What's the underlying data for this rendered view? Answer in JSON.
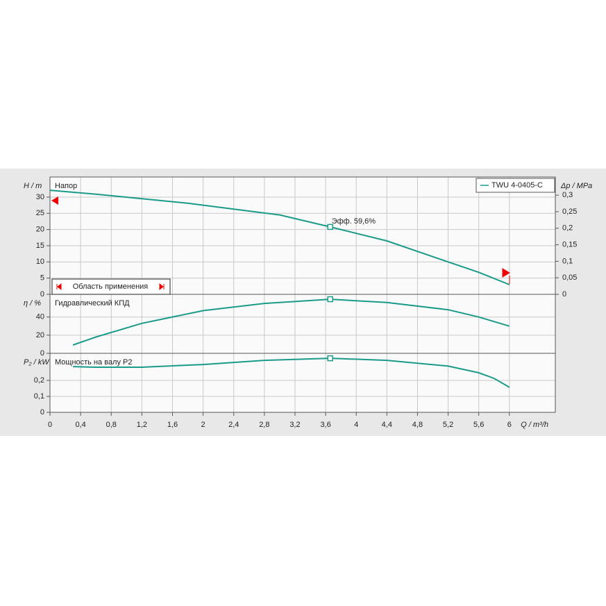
{
  "chart_data": [
    {
      "type": "line",
      "title": "Напор",
      "ylabel": "H / m",
      "y2label": "Δp / MPa",
      "ylim": [
        0,
        36.2
      ],
      "yticks": [
        0,
        5,
        10,
        15,
        20,
        25,
        30
      ],
      "y2lim": [
        0,
        0.355
      ],
      "y2ticks": [
        0,
        {
          "value": 0.05,
          "label": "0,05"
        },
        {
          "value": 0.1,
          "label": "0,1"
        },
        {
          "value": 0.15,
          "label": "0,15"
        },
        {
          "value": 0.2,
          "label": "0,2"
        },
        {
          "value": 0.25,
          "label": "0,25"
        },
        {
          "value": 0.3,
          "label": "0,3"
        }
      ],
      "annotation": "Эфф.  59,6%",
      "range_label": "Область применения",
      "legend": "top-right",
      "series": [
        {
          "name": "TWU 4-0405-C",
          "color": "#1a9a88",
          "x": [
            0,
            0.6,
            1.2,
            1.8,
            2.4,
            3.0,
            3.66,
            4.4,
            5.2,
            5.6,
            6.0
          ],
          "values": [
            32.1,
            30.9,
            29.5,
            28.1,
            26.3,
            24.5,
            20.8,
            16.5,
            10,
            6.8,
            3
          ]
        }
      ],
      "operating_point": {
        "x": 3.66,
        "y": 20.8
      }
    },
    {
      "type": "line",
      "title": "Гидравлический КПД",
      "ylabel": "η / %",
      "ylim": [
        0,
        65
      ],
      "yticks": [
        0,
        20,
        40
      ],
      "series": [
        {
          "name": "КПД",
          "color": "#1a9a88",
          "x": [
            0.3,
            0.6,
            1.2,
            2.0,
            2.8,
            3.66,
            4.4,
            5.2,
            5.6,
            6.0
          ],
          "values": [
            9.2,
            18,
            33,
            47,
            55,
            59.6,
            56,
            48,
            40,
            30
          ]
        }
      ],
      "operating_point": {
        "x": 3.66,
        "y": 59.6
      }
    },
    {
      "type": "line",
      "title": "Мощность на валу P2",
      "ylabel": "P₂ / kW",
      "xlabel": "Q / m³/h",
      "ylim": [
        0,
        0.37
      ],
      "yticks": [
        0,
        {
          "value": 0.1,
          "label": "0,1"
        },
        {
          "value": 0.2,
          "label": "0,2"
        }
      ],
      "xlim": [
        0,
        6.6
      ],
      "xticks": [
        0,
        {
          "value": 0.4,
          "label": "0,4"
        },
        {
          "value": 0.8,
          "label": "0,8"
        },
        {
          "value": 1.2,
          "label": "1,2"
        },
        {
          "value": 1.6,
          "label": "1,6"
        },
        2,
        {
          "value": 2.4,
          "label": "2,4"
        },
        {
          "value": 2.8,
          "label": "2,8"
        },
        {
          "value": 3.2,
          "label": "3,2"
        },
        {
          "value": 3.6,
          "label": "3,6"
        },
        4,
        {
          "value": 4.4,
          "label": "4,4"
        },
        {
          "value": 4.8,
          "label": "4,8"
        },
        {
          "value": 5.2,
          "label": "5,2"
        },
        {
          "value": 5.6,
          "label": "5,6"
        },
        6
      ],
      "series": [
        {
          "name": "P2",
          "color": "#1a9a88",
          "x": [
            0.3,
            0.6,
            1.2,
            2.0,
            2.8,
            3.66,
            4.4,
            5.2,
            5.6,
            5.8,
            6.0
          ],
          "values": [
            0.287,
            0.283,
            0.283,
            0.3,
            0.326,
            0.339,
            0.326,
            0.29,
            0.248,
            0.213,
            0.157
          ]
        }
      ],
      "operating_point": {
        "x": 3.66,
        "y": 0.339
      }
    }
  ]
}
